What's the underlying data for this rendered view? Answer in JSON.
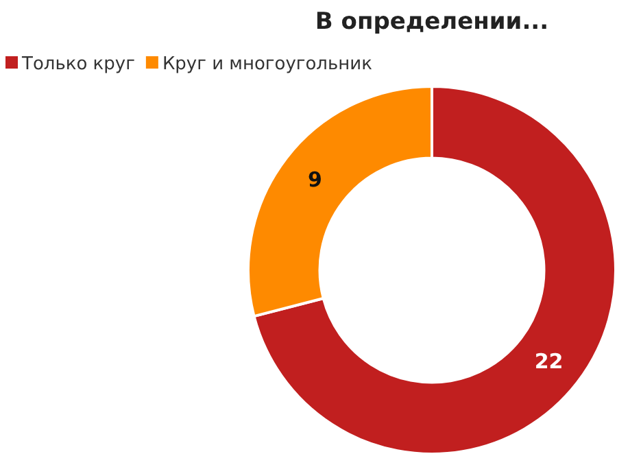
{
  "chart_data": {
    "type": "donut",
    "title": "В определении...",
    "categories": [
      "Только круг",
      "Круг и многоугольник"
    ],
    "values": [
      22,
      9
    ],
    "colors": [
      "#c11f1f",
      "#fe8a00"
    ],
    "data_labels": true,
    "legend": "top left"
  }
}
